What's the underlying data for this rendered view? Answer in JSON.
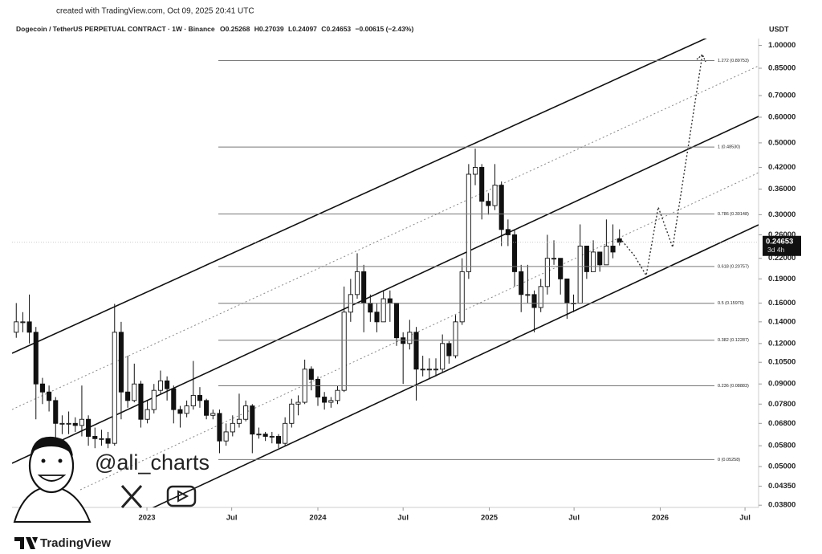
{
  "chart_data": {
    "type": "candlestick",
    "credit": "created with TradingView.com, Oct 09, 2025 20:41 UTC",
    "title": "Dogecoin / TetherUS PERPETUAL CONTRACT · 1W · Binance",
    "ohlc_prefixes": [
      "O",
      "H",
      "L",
      "C"
    ],
    "change_label": "−0.00615 (−2.43%)",
    "currency": "USDT",
    "countdown": "3d 4h",
    "watermark": "@ali_charts",
    "brand": "TradingView",
    "log_scale": true,
    "grid": false,
    "up_color": "#ffffff",
    "down_color": "#111111",
    "x": [
      "2022-03-28",
      "2022-04-11",
      "2022-04-25",
      "2022-05-09",
      "2022-05-23",
      "2022-06-06",
      "2022-06-20",
      "2022-07-04",
      "2022-07-18",
      "2022-08-01",
      "2022-08-15",
      "2022-08-29",
      "2022-09-12",
      "2022-09-26",
      "2022-10-10",
      "2022-10-24",
      "2022-11-07",
      "2022-11-21",
      "2022-12-05",
      "2022-12-19",
      "2023-01-02",
      "2023-01-16",
      "2023-01-30",
      "2023-02-13",
      "2023-02-27",
      "2023-03-13",
      "2023-03-27",
      "2023-04-10",
      "2023-04-24",
      "2023-05-08",
      "2023-05-22",
      "2023-06-05",
      "2023-06-19",
      "2023-07-03",
      "2023-07-17",
      "2023-07-31",
      "2023-08-14",
      "2023-08-28",
      "2023-09-11",
      "2023-09-25",
      "2023-10-09",
      "2023-10-23",
      "2023-11-06",
      "2023-11-20",
      "2023-12-04",
      "2023-12-18",
      "2024-01-01",
      "2024-01-15",
      "2024-01-29",
      "2024-02-12",
      "2024-02-26",
      "2024-03-11",
      "2024-03-25",
      "2024-04-08",
      "2024-04-22",
      "2024-05-06",
      "2024-05-20",
      "2024-06-03",
      "2024-06-17",
      "2024-07-01",
      "2024-07-15",
      "2024-07-29",
      "2024-08-12",
      "2024-08-26",
      "2024-09-09",
      "2024-09-23",
      "2024-10-07",
      "2024-10-21",
      "2024-11-04",
      "2024-11-18",
      "2024-12-02",
      "2024-12-16",
      "2024-12-30",
      "2025-01-13",
      "2025-01-27",
      "2025-02-10",
      "2025-02-24",
      "2025-03-10",
      "2025-03-24",
      "2025-04-07",
      "2025-04-21",
      "2025-05-05",
      "2025-05-19",
      "2025-06-02",
      "2025-06-16",
      "2025-06-30",
      "2025-07-14",
      "2025-07-28",
      "2025-08-11",
      "2025-08-25",
      "2025-09-08",
      "2025-09-22",
      "2025-10-06"
    ],
    "open": [
      0.13,
      0.14,
      0.14,
      0.13,
      0.09,
      0.085,
      0.08,
      0.068,
      0.068,
      0.068,
      0.067,
      0.07,
      0.062,
      0.061,
      0.061,
      0.059,
      0.13,
      0.085,
      0.08,
      0.09,
      0.07,
      0.075,
      0.086,
      0.092,
      0.087,
      0.075,
      0.073,
      0.077,
      0.083,
      0.08,
      0.072,
      0.073,
      0.06,
      0.064,
      0.068,
      0.07,
      0.077,
      0.063,
      0.063,
      0.062,
      0.062,
      0.059,
      0.068,
      0.078,
      0.079,
      0.1,
      0.093,
      0.082,
      0.079,
      0.08,
      0.086,
      0.15,
      0.17,
      0.2,
      0.16,
      0.15,
      0.14,
      0.165,
      0.16,
      0.125,
      0.12,
      0.13,
      0.1,
      0.1,
      0.1,
      0.1,
      0.12,
      0.11,
      0.14,
      0.2,
      0.4,
      0.42,
      0.33,
      0.32,
      0.37,
      0.27,
      0.26,
      0.2,
      0.17,
      0.17,
      0.155,
      0.18,
      0.22,
      0.22,
      0.19,
      0.16,
      0.16,
      0.24,
      0.2,
      0.23,
      0.21,
      0.24,
      0.25268
    ],
    "high": [
      0.16,
      0.15,
      0.17,
      0.135,
      0.094,
      0.089,
      0.082,
      0.072,
      0.074,
      0.071,
      0.089,
      0.072,
      0.066,
      0.065,
      0.064,
      0.159,
      0.14,
      0.11,
      0.104,
      0.092,
      0.08,
      0.09,
      0.099,
      0.095,
      0.089,
      0.077,
      0.08,
      0.106,
      0.088,
      0.081,
      0.075,
      0.075,
      0.068,
      0.072,
      0.084,
      0.08,
      0.078,
      0.066,
      0.064,
      0.064,
      0.063,
      0.071,
      0.081,
      0.083,
      0.107,
      0.102,
      0.095,
      0.085,
      0.082,
      0.089,
      0.18,
      0.19,
      0.228,
      0.21,
      0.17,
      0.16,
      0.174,
      0.175,
      0.16,
      0.13,
      0.142,
      0.135,
      0.11,
      0.108,
      0.108,
      0.128,
      0.122,
      0.147,
      0.22,
      0.43,
      0.48,
      0.43,
      0.35,
      0.43,
      0.38,
      0.29,
      0.27,
      0.21,
      0.21,
      0.175,
      0.19,
      0.26,
      0.25,
      0.22,
      0.19,
      0.17,
      0.28,
      0.24,
      0.25,
      0.23,
      0.29,
      0.28,
      0.27039
    ],
    "low": [
      0.125,
      0.13,
      0.12,
      0.07,
      0.078,
      0.074,
      0.05,
      0.063,
      0.063,
      0.064,
      0.062,
      0.058,
      0.057,
      0.058,
      0.057,
      0.058,
      0.07,
      0.076,
      0.079,
      0.066,
      0.068,
      0.073,
      0.084,
      0.08,
      0.068,
      0.066,
      0.071,
      0.075,
      0.076,
      0.07,
      0.07,
      0.055,
      0.058,
      0.062,
      0.066,
      0.069,
      0.055,
      0.061,
      0.06,
      0.059,
      0.057,
      0.058,
      0.066,
      0.072,
      0.078,
      0.086,
      0.077,
      0.075,
      0.076,
      0.078,
      0.085,
      0.14,
      0.165,
      0.13,
      0.14,
      0.13,
      0.14,
      0.14,
      0.118,
      0.09,
      0.115,
      0.08,
      0.095,
      0.093,
      0.095,
      0.098,
      0.104,
      0.108,
      0.137,
      0.19,
      0.37,
      0.29,
      0.3,
      0.31,
      0.24,
      0.24,
      0.18,
      0.15,
      0.16,
      0.13,
      0.15,
      0.17,
      0.21,
      0.17,
      0.143,
      0.15,
      0.16,
      0.19,
      0.2,
      0.2,
      0.21,
      0.22,
      0.24097
    ],
    "close": [
      0.14,
      0.14,
      0.13,
      0.09,
      0.085,
      0.08,
      0.068,
      0.068,
      0.068,
      0.067,
      0.07,
      0.062,
      0.061,
      0.061,
      0.059,
      0.13,
      0.085,
      0.08,
      0.09,
      0.07,
      0.075,
      0.086,
      0.092,
      0.087,
      0.075,
      0.073,
      0.077,
      0.083,
      0.08,
      0.072,
      0.073,
      0.06,
      0.064,
      0.068,
      0.07,
      0.077,
      0.063,
      0.063,
      0.062,
      0.062,
      0.059,
      0.068,
      0.078,
      0.079,
      0.1,
      0.093,
      0.082,
      0.079,
      0.08,
      0.086,
      0.15,
      0.17,
      0.2,
      0.16,
      0.15,
      0.14,
      0.165,
      0.16,
      0.125,
      0.12,
      0.13,
      0.1,
      0.1,
      0.1,
      0.1,
      0.12,
      0.11,
      0.14,
      0.2,
      0.4,
      0.42,
      0.33,
      0.32,
      0.37,
      0.27,
      0.26,
      0.2,
      0.17,
      0.17,
      0.155,
      0.18,
      0.22,
      0.22,
      0.19,
      0.16,
      0.16,
      0.24,
      0.2,
      0.23,
      0.21,
      0.24,
      0.23,
      0.24653
    ],
    "xlim": [
      "2022-03-19",
      "2026-07-30"
    ],
    "xticks": [
      {
        "value": "2023-01-01",
        "label": "2023"
      },
      {
        "value": "2023-07-01",
        "label": "Jul"
      },
      {
        "value": "2024-01-01",
        "label": "2024"
      },
      {
        "value": "2024-07-01",
        "label": "Jul"
      },
      {
        "value": "2025-01-01",
        "label": "2025"
      },
      {
        "value": "2025-07-01",
        "label": "Jul"
      },
      {
        "value": "2026-01-01",
        "label": "2026"
      },
      {
        "value": "2026-07-01",
        "label": "Jul"
      }
    ],
    "ylim": [
      0.0374,
      1.05
    ],
    "yticks": [
      {
        "value": 1,
        "label": "1.00000"
      },
      {
        "value": 0.85,
        "label": "0.85000"
      },
      {
        "value": 0.7,
        "label": "0.70000"
      },
      {
        "value": 0.6,
        "label": "0.60000"
      },
      {
        "value": 0.5,
        "label": "0.50000"
      },
      {
        "value": 0.42,
        "label": "0.42000"
      },
      {
        "value": 0.36,
        "label": "0.36000"
      },
      {
        "value": 0.3,
        "label": "0.30000"
      },
      {
        "value": 0.26,
        "label": "0.26000"
      },
      {
        "value": 0.22,
        "label": "0.22000"
      },
      {
        "value": 0.19,
        "label": "0.19000"
      },
      {
        "value": 0.16,
        "label": "0.16000"
      },
      {
        "value": 0.14,
        "label": "0.14000"
      },
      {
        "value": 0.12,
        "label": "0.12000"
      },
      {
        "value": 0.105,
        "label": "0.10500"
      },
      {
        "value": 0.09,
        "label": "0.09000"
      },
      {
        "value": 0.078,
        "label": "0.07800"
      },
      {
        "value": 0.068,
        "label": "0.06800"
      },
      {
        "value": 0.058,
        "label": "0.05800"
      },
      {
        "value": 0.05,
        "label": "0.05000"
      },
      {
        "value": 0.0435,
        "label": "0.04350"
      },
      {
        "value": 0.038,
        "label": "0.03800"
      }
    ],
    "fib_levels": [
      {
        "value": 0.89753,
        "label": "1.272 (0.89753)"
      },
      {
        "value": 0.4853,
        "label": "1 (0.48530)"
      },
      {
        "value": 0.30148,
        "label": "0.786 (0.30148)"
      },
      {
        "value": 0.20757,
        "label": "0.618 (0.20757)"
      },
      {
        "value": 0.1597,
        "label": "0.5 (0.15970)"
      },
      {
        "value": 0.12287,
        "label": "0.382 (0.12287)"
      },
      {
        "value": 0.08883,
        "label": "0.236 (0.08883)"
      },
      {
        "value": 0.05258,
        "label": "0 (0.05258)"
      }
    ]
  }
}
